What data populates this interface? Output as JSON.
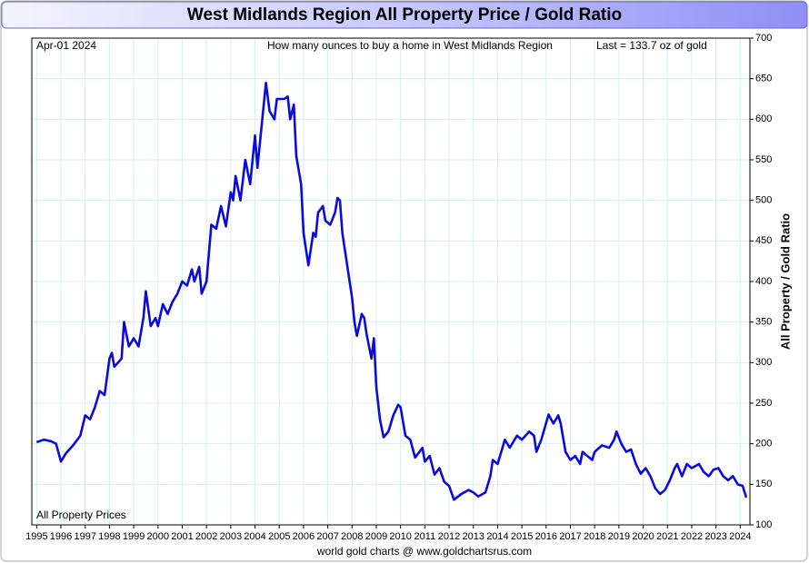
{
  "chart_data": {
    "type": "line",
    "title": "West Midlands Region All Property Price / Gold Ratio",
    "date_label": "Apr-01  2024",
    "subtitle": "How many ounces to buy a home in West Midlands Region",
    "last_label": "Last = 133.7 oz of gold",
    "y_axis_label": "All Property / Gold Ratio",
    "footer": "world gold charts @ www.goldchartsrus.com",
    "grid": true,
    "xlim": [
      1994.8,
      2024.4
    ],
    "ylim": [
      100,
      700
    ],
    "xticks": [
      1995,
      1996,
      1997,
      1998,
      1999,
      2000,
      2001,
      2002,
      2003,
      2004,
      2005,
      2006,
      2007,
      2008,
      2009,
      2010,
      2011,
      2012,
      2013,
      2014,
      2015,
      2016,
      2017,
      2018,
      2019,
      2020,
      2021,
      2022,
      2023,
      2024
    ],
    "yticks": [
      100,
      150,
      200,
      250,
      300,
      350,
      400,
      450,
      500,
      550,
      600,
      650,
      700
    ],
    "x": [
      1995.0,
      1995.3,
      1995.6,
      1995.8,
      1996.0,
      1996.2,
      1996.5,
      1996.8,
      1997.0,
      1997.2,
      1997.4,
      1997.6,
      1997.8,
      1998.0,
      1998.1,
      1998.2,
      1998.5,
      1998.6,
      1998.8,
      1999.0,
      1999.2,
      1999.4,
      1999.5,
      1999.7,
      1999.9,
      2000.0,
      2000.2,
      2000.4,
      2000.6,
      2000.8,
      2001.0,
      2001.2,
      2001.4,
      2001.5,
      2001.7,
      2001.8,
      2002.0,
      2002.2,
      2002.4,
      2002.6,
      2002.8,
      2003.0,
      2003.1,
      2003.2,
      2003.4,
      2003.6,
      2003.8,
      2004.0,
      2004.1,
      2004.3,
      2004.45,
      2004.6,
      2004.8,
      2004.9,
      2005.2,
      2005.35,
      2005.45,
      2005.6,
      2005.7,
      2005.9,
      2006.0,
      2006.2,
      2006.4,
      2006.5,
      2006.6,
      2006.8,
      2006.9,
      2007.1,
      2007.3,
      2007.4,
      2007.5,
      2007.6,
      2007.8,
      2008.0,
      2008.1,
      2008.2,
      2008.4,
      2008.5,
      2008.6,
      2008.8,
      2008.9,
      2009.0,
      2009.15,
      2009.3,
      2009.5,
      2009.7,
      2009.9,
      2010.0,
      2010.2,
      2010.4,
      2010.6,
      2010.9,
      2011.0,
      2011.2,
      2011.4,
      2011.6,
      2011.8,
      2012.0,
      2012.2,
      2012.5,
      2012.8,
      2013.0,
      2013.2,
      2013.5,
      2013.7,
      2013.8,
      2014.0,
      2014.3,
      2014.5,
      2014.8,
      2015.0,
      2015.3,
      2015.5,
      2015.6,
      2015.8,
      2016.1,
      2016.3,
      2016.5,
      2016.6,
      2016.8,
      2017.0,
      2017.2,
      2017.4,
      2017.5,
      2017.7,
      2017.9,
      2018.0,
      2018.3,
      2018.6,
      2018.8,
      2018.9,
      2019.1,
      2019.3,
      2019.5,
      2019.7,
      2019.9,
      2020.1,
      2020.3,
      2020.5,
      2020.7,
      2020.9,
      2021.1,
      2021.3,
      2021.4,
      2021.6,
      2021.8,
      2022.0,
      2022.3,
      2022.5,
      2022.7,
      2022.9,
      2023.1,
      2023.3,
      2023.5,
      2023.7,
      2023.9,
      2024.1,
      2024.25
    ],
    "series": [
      {
        "name": "All Property Prices",
        "color": "#0a0adc",
        "values": [
          202,
          205,
          203,
          200,
          178,
          188,
          198,
          210,
          235,
          230,
          245,
          265,
          260,
          305,
          312,
          295,
          305,
          350,
          320,
          330,
          320,
          355,
          388,
          345,
          355,
          345,
          372,
          360,
          375,
          385,
          400,
          395,
          415,
          400,
          418,
          385,
          400,
          470,
          465,
          493,
          468,
          510,
          500,
          530,
          500,
          550,
          520,
          580,
          540,
          600,
          645,
          610,
          600,
          625,
          625,
          628,
          600,
          618,
          555,
          520,
          460,
          420,
          460,
          455,
          485,
          493,
          475,
          470,
          485,
          503,
          500,
          460,
          420,
          380,
          350,
          333,
          360,
          355,
          335,
          305,
          330,
          270,
          230,
          208,
          215,
          235,
          248,
          245,
          210,
          205,
          183,
          195,
          178,
          185,
          162,
          170,
          153,
          148,
          131,
          138,
          143,
          140,
          135,
          140,
          160,
          180,
          175,
          205,
          195,
          210,
          205,
          215,
          210,
          190,
          205,
          236,
          225,
          235,
          225,
          190,
          180,
          185,
          175,
          190,
          185,
          180,
          190,
          198,
          195,
          205,
          215,
          200,
          190,
          193,
          175,
          163,
          170,
          160,
          145,
          138,
          143,
          155,
          170,
          175,
          160,
          175,
          170,
          175,
          165,
          160,
          168,
          170,
          160,
          155,
          160,
          150,
          148,
          133.7
        ]
      }
    ]
  }
}
